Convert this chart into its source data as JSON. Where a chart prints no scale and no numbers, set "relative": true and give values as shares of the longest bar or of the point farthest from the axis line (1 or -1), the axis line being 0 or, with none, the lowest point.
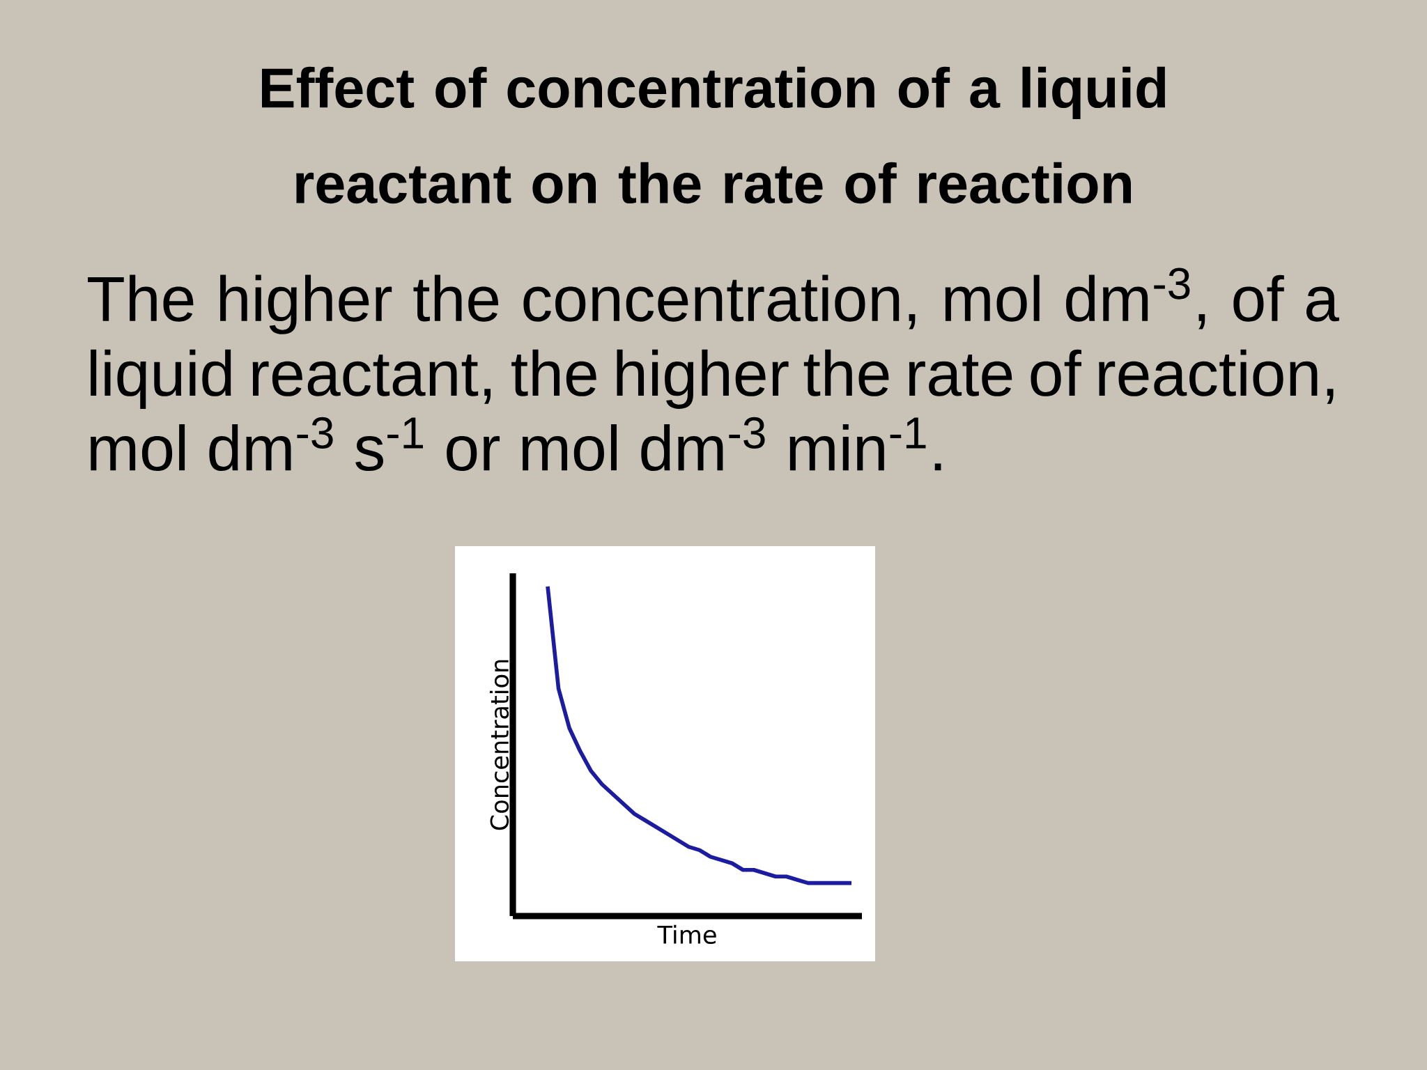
{
  "chart_data": {
    "type": "line",
    "title": "Effect of concentration of a liquid reactant on the rate of reaction",
    "annotations": [
      "The higher the concentration, mol dm$^{-3}$, of a liquid reactant, the higher the rate of reaction, mol dm$^{-3}$ s$^{-1}$ or mol dm$^{-3}$ min$^{-1}$."
    ],
    "xlabel": "Time",
    "ylabel": "Concentration",
    "relative": true,
    "categories": [
      null,
      null,
      null,
      null,
      null,
      null,
      null,
      null,
      null,
      null,
      null,
      null,
      null,
      null,
      null,
      null,
      null,
      null,
      null,
      null,
      null,
      null,
      null,
      null,
      null,
      null,
      null,
      null,
      null
    ],
    "values": [
      1.0,
      0.69,
      0.57,
      0.5,
      0.44,
      0.4,
      0.37,
      0.34,
      0.31,
      0.29,
      0.27,
      0.25,
      0.23,
      0.21,
      0.2,
      0.18,
      0.17,
      0.16,
      0.14,
      0.14,
      0.13,
      0.12,
      0.12,
      0.11,
      0.1,
      0.1,
      0.1,
      0.1,
      0.1
    ],
    "color": "#1c1ca0"
  }
}
